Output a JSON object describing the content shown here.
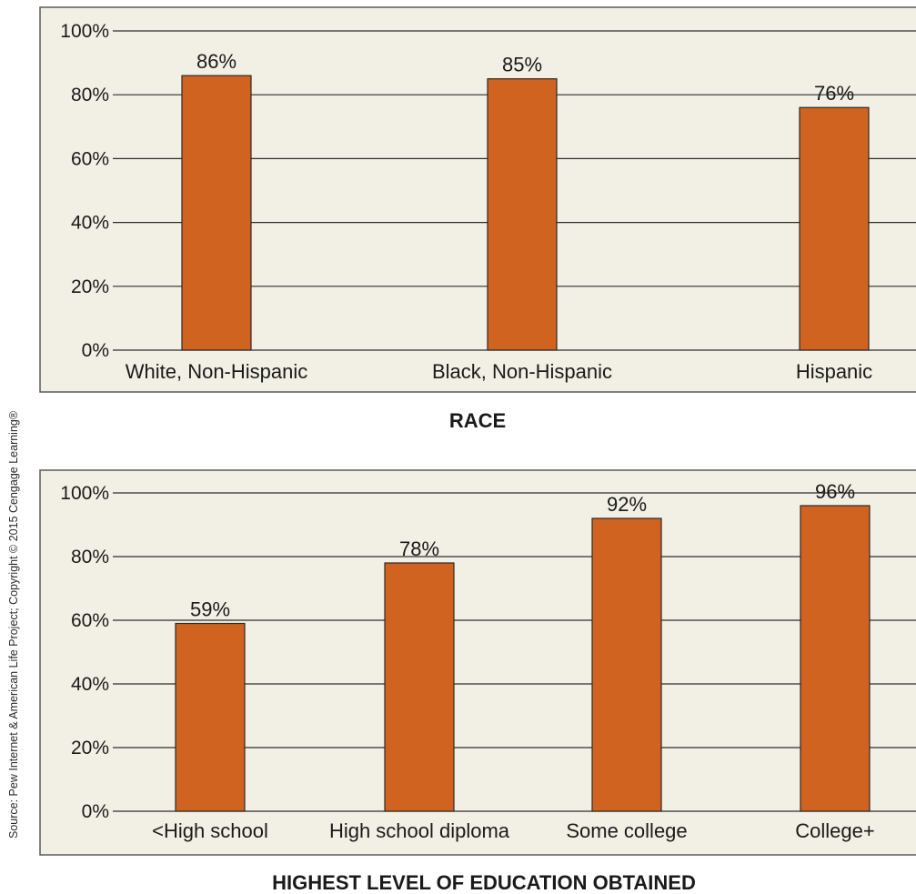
{
  "source_note": "Source: Pew Internet & American Life Project; Copyright © 2015 Cengage Learning®",
  "chart_data": [
    {
      "type": "bar",
      "title": "",
      "xlabel": "RACE",
      "ylabel": "",
      "ylim": [
        0,
        100
      ],
      "yticks": [
        "0%",
        "20%",
        "40%",
        "60%",
        "80%",
        "100%"
      ],
      "grid": true,
      "categories": [
        "White, Non-Hispanic",
        "Black, Non-Hispanic",
        "Hispanic"
      ],
      "values": [
        86,
        85,
        76
      ],
      "value_labels": [
        "86%",
        "85%",
        "76%"
      ],
      "bar_color": "#d06320"
    },
    {
      "type": "bar",
      "title": "",
      "xlabel": "HIGHEST LEVEL OF EDUCATION OBTAINED",
      "ylabel": "",
      "ylim": [
        0,
        100
      ],
      "yticks": [
        "0%",
        "20%",
        "40%",
        "60%",
        "80%",
        "100%"
      ],
      "grid": true,
      "categories": [
        "<High school",
        "High school diploma",
        "Some college",
        "College+"
      ],
      "values": [
        59,
        78,
        92,
        96
      ],
      "value_labels": [
        "59%",
        "78%",
        "92%",
        "96%"
      ],
      "bar_color": "#d06320"
    }
  ]
}
